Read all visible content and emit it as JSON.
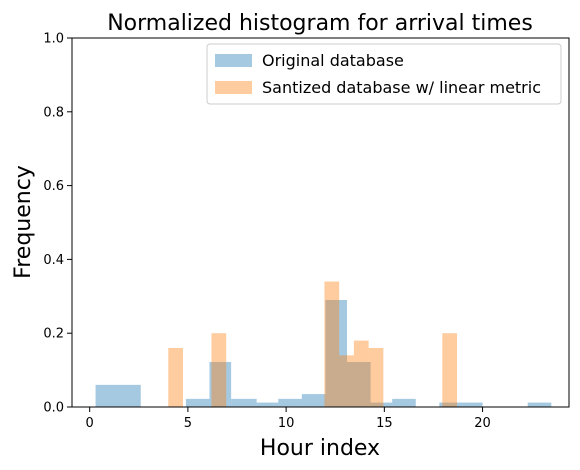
{
  "chart_data": {
    "type": "bar",
    "title": "Normalized histogram for arrival times",
    "xlabel": "Hour index",
    "ylabel": "Frequency",
    "xlim": [
      -0.9,
      24.4
    ],
    "ylim": [
      0,
      1.0
    ],
    "xticks": [
      0,
      5,
      10,
      15,
      20
    ],
    "yticks": [
      0.0,
      0.2,
      0.4,
      0.6,
      0.8,
      1.0
    ],
    "legend_position": "top-right",
    "series": [
      {
        "name": "Original database",
        "color": "#1f77b4",
        "opacity": 0.4,
        "bins": [
          {
            "x0": 0.3,
            "x1": 2.6,
            "value": 0.06
          },
          {
            "x0": 4.9,
            "x1": 6.1,
            "value": 0.022
          },
          {
            "x0": 6.1,
            "x1": 7.2,
            "value": 0.122
          },
          {
            "x0": 7.2,
            "x1": 8.5,
            "value": 0.022
          },
          {
            "x0": 8.5,
            "x1": 9.6,
            "value": 0.012
          },
          {
            "x0": 9.6,
            "x1": 10.8,
            "value": 0.022
          },
          {
            "x0": 10.8,
            "x1": 12.0,
            "value": 0.035
          },
          {
            "x0": 12.0,
            "x1": 13.1,
            "value": 0.29
          },
          {
            "x0": 13.1,
            "x1": 14.3,
            "value": 0.122
          },
          {
            "x0": 14.3,
            "x1": 15.4,
            "value": 0.012
          },
          {
            "x0": 15.4,
            "x1": 16.6,
            "value": 0.022
          },
          {
            "x0": 17.8,
            "x1": 20.0,
            "value": 0.012
          },
          {
            "x0": 22.3,
            "x1": 23.5,
            "value": 0.012
          }
        ]
      },
      {
        "name": "Santized database w/ linear metric",
        "color": "#ff7f0e",
        "opacity": 0.4,
        "bins": [
          {
            "x0": 4.0,
            "x1": 4.75,
            "value": 0.16
          },
          {
            "x0": 6.2,
            "x1": 6.95,
            "value": 0.2
          },
          {
            "x0": 11.95,
            "x1": 12.7,
            "value": 0.34
          },
          {
            "x0": 12.7,
            "x1": 13.45,
            "value": 0.14
          },
          {
            "x0": 13.45,
            "x1": 14.2,
            "value": 0.18
          },
          {
            "x0": 14.2,
            "x1": 14.95,
            "value": 0.16
          },
          {
            "x0": 17.95,
            "x1": 18.7,
            "value": 0.2
          }
        ]
      }
    ]
  }
}
